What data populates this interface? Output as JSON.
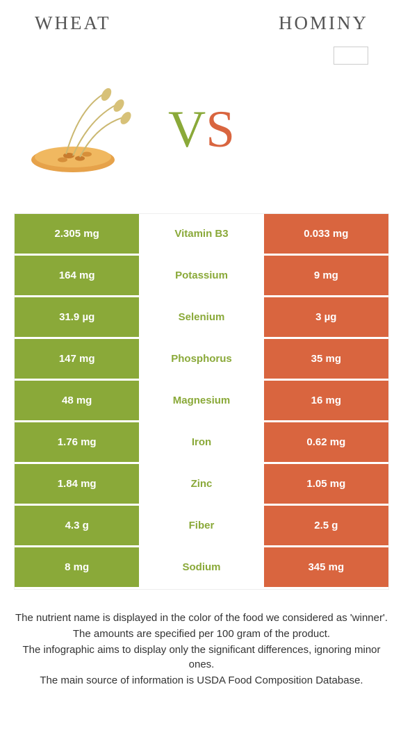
{
  "colors": {
    "left_bg": "#8aa939",
    "right_bg": "#d9653f",
    "left_text": "#8aa939",
    "right_text": "#d9653f",
    "cell_text": "#ffffff"
  },
  "header": {
    "left_title": "Wheat",
    "right_title": "Hominy"
  },
  "vs": {
    "v": "V",
    "s": "S"
  },
  "table": {
    "type": "comparison-table",
    "rows": [
      {
        "left": "2.305 mg",
        "mid": "Vitamin B3",
        "right": "0.033 mg",
        "winner": "left"
      },
      {
        "left": "164 mg",
        "mid": "Potassium",
        "right": "9 mg",
        "winner": "left"
      },
      {
        "left": "31.9 µg",
        "mid": "Selenium",
        "right": "3 µg",
        "winner": "left"
      },
      {
        "left": "147 mg",
        "mid": "Phosphorus",
        "right": "35 mg",
        "winner": "left"
      },
      {
        "left": "48 mg",
        "mid": "Magnesium",
        "right": "16 mg",
        "winner": "left"
      },
      {
        "left": "1.76 mg",
        "mid": "Iron",
        "right": "0.62 mg",
        "winner": "left"
      },
      {
        "left": "1.84 mg",
        "mid": "Zinc",
        "right": "1.05 mg",
        "winner": "left"
      },
      {
        "left": "4.3 g",
        "mid": "Fiber",
        "right": "2.5 g",
        "winner": "left"
      },
      {
        "left": "8 mg",
        "mid": "Sodium",
        "right": "345 mg",
        "winner": "left"
      }
    ]
  },
  "footnotes": {
    "l1": "The nutrient name is displayed in the color of the food we considered as 'winner'.",
    "l2": "The amounts are specified per 100 gram of the product.",
    "l3": "The infographic aims to display only the significant differences, ignoring minor ones.",
    "l4": "The main source of information is USDA Food Composition Database."
  }
}
